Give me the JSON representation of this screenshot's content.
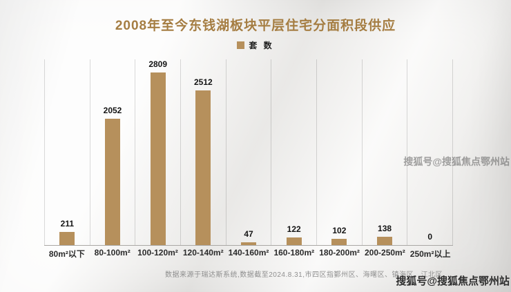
{
  "chart_data": {
    "type": "bar",
    "title": "2008年至今东钱湖板块平层住宅分面积段供应",
    "legend": "套 数",
    "categories": [
      "80m²以下",
      "80-100m²",
      "100-120m²",
      "120-140m²",
      "140-160m²",
      "160-180m²",
      "180-200m²",
      "200-250m²",
      "250m²以上"
    ],
    "values": [
      211,
      2052,
      2809,
      2512,
      47,
      122,
      102,
      138,
      0
    ],
    "ylim": [
      0,
      2809
    ],
    "grid": "vertical-separators",
    "legend_position": "top-center",
    "bar_color": "#b6905c"
  },
  "colors": {
    "title": "#a57d42",
    "bar": "#b6905c",
    "value_label": "#141414",
    "category_label": "#2b2b2b",
    "footer": "#8f8f8f"
  },
  "footer": {
    "source_note": "数据来源于瑞达斯系统,数据截至2024.8.31,市四区指鄞州区、海曙区、镇海区、江北区"
  },
  "watermark": {
    "text": "搜狐号@搜狐焦点鄂州站"
  }
}
